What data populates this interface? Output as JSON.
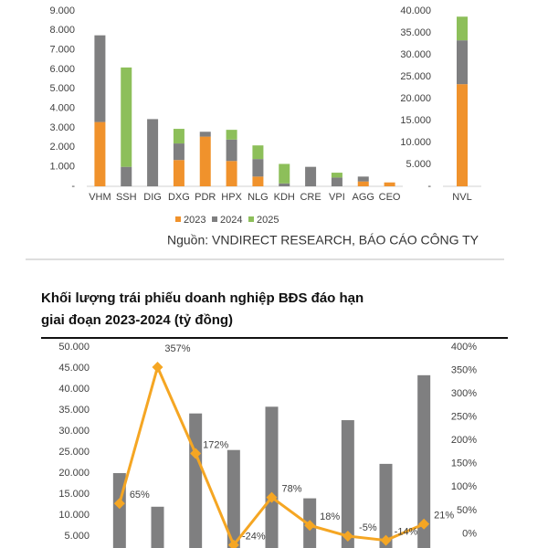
{
  "chart_data": [
    {
      "type": "stacked_bar",
      "categories": [
        "VHM",
        "SSH",
        "DIG",
        "DXG",
        "PDR",
        "HPX",
        "NLG",
        "KDH",
        "CRE",
        "VPI",
        "AGG",
        "CEO"
      ],
      "series": [
        {
          "name": "2023",
          "color": "#f0922c",
          "values": [
            3300,
            0,
            0,
            1350,
            2550,
            1300,
            500,
            0,
            0,
            0,
            250,
            200
          ]
        },
        {
          "name": "2024",
          "color": "#7f7f80",
          "values": [
            4450,
            1000,
            3450,
            850,
            250,
            1100,
            900,
            150,
            1000,
            450,
            250,
            0
          ]
        },
        {
          "name": "2025",
          "color": "#8dbf5a",
          "values": [
            0,
            5100,
            0,
            750,
            0,
            500,
            700,
            1000,
            0,
            250,
            0,
            0
          ]
        }
      ],
      "ylim": [
        0,
        9000
      ],
      "yticks": [
        {
          "value": 0,
          "label": "-"
        },
        {
          "value": 1000,
          "label": "1.000"
        },
        {
          "value": 2000,
          "label": "2.000"
        },
        {
          "value": 3000,
          "label": "3.000"
        },
        {
          "value": 4000,
          "label": "4.000"
        },
        {
          "value": 5000,
          "label": "5.000"
        },
        {
          "value": 6000,
          "label": "6.000"
        },
        {
          "value": 7000,
          "label": "7.000"
        },
        {
          "value": 8000,
          "label": "8.000"
        },
        {
          "value": 9000,
          "label": "9.000"
        }
      ],
      "note": "Nguồn: VNDIRECT RESEARCH, BÁO CÁO CÔNG TY"
    },
    {
      "type": "stacked_bar",
      "categories": [
        "NVL"
      ],
      "series": [
        {
          "color": "#f0922c",
          "values": [
            23300
          ]
        },
        {
          "color": "#7f7f80",
          "values": [
            10000
          ]
        },
        {
          "color": "#8dbf5a",
          "values": [
            5400
          ]
        }
      ],
      "ylim": [
        0,
        40000
      ],
      "yticks": [
        {
          "value": 0,
          "label": "-"
        },
        {
          "value": 5000,
          "label": "5.000"
        },
        {
          "value": 10000,
          "label": "10.000"
        },
        {
          "value": 15000,
          "label": "15.000"
        },
        {
          "value": 20000,
          "label": "20.000"
        },
        {
          "value": 25000,
          "label": "25.000"
        },
        {
          "value": 30000,
          "label": "30.000"
        },
        {
          "value": 35000,
          "label": "35.000"
        },
        {
          "value": 40000,
          "label": "40.000"
        }
      ]
    },
    {
      "type": "combo",
      "title": [
        "Khối lượng trái phiếu doanh nghiệp BĐS đáo hạn",
        "giai đoạn 2023-2024 (tỷ đồng)"
      ],
      "categories": [
        null,
        null,
        null,
        null,
        null,
        null,
        null,
        null,
        null
      ],
      "series": [
        {
          "color": "#7f7f80",
          "values": [
            20000,
            12000,
            34200,
            25500,
            35800,
            14000,
            32600,
            22200,
            43300
          ]
        },
        {
          "color": "#f5a623",
          "axis": "y2",
          "values": [
            65,
            357,
            172,
            -24,
            78,
            18,
            -5,
            -14,
            21
          ],
          "value_labels": [
            "65%",
            "357%",
            "172%",
            "-24%",
            "78%",
            "18%",
            "-5%",
            "-14%",
            "21%"
          ]
        }
      ],
      "ylim": [
        0,
        50000
      ],
      "yticks": [
        {
          "value": 5000,
          "label": "5.000"
        },
        {
          "value": 10000,
          "label": "10.000"
        },
        {
          "value": 15000,
          "label": "15.000"
        },
        {
          "value": 20000,
          "label": "20.000"
        },
        {
          "value": 25000,
          "label": "25.000"
        },
        {
          "value": 30000,
          "label": "30.000"
        },
        {
          "value": 35000,
          "label": "35.000"
        },
        {
          "value": 40000,
          "label": "40.000"
        },
        {
          "value": 45000,
          "label": "45.000"
        },
        {
          "value": 50000,
          "label": "50.000"
        }
      ],
      "y2lim": [
        -50,
        400
      ],
      "y2ticks": [
        {
          "value": 0,
          "label": "0%"
        },
        {
          "value": 50,
          "label": "50%"
        },
        {
          "value": 100,
          "label": "100%"
        },
        {
          "value": 150,
          "label": "150%"
        },
        {
          "value": 200,
          "label": "200%"
        },
        {
          "value": 250,
          "label": "250%"
        },
        {
          "value": 300,
          "label": "300%"
        },
        {
          "value": 350,
          "label": "350%"
        },
        {
          "value": 400,
          "label": "400%"
        }
      ]
    }
  ]
}
